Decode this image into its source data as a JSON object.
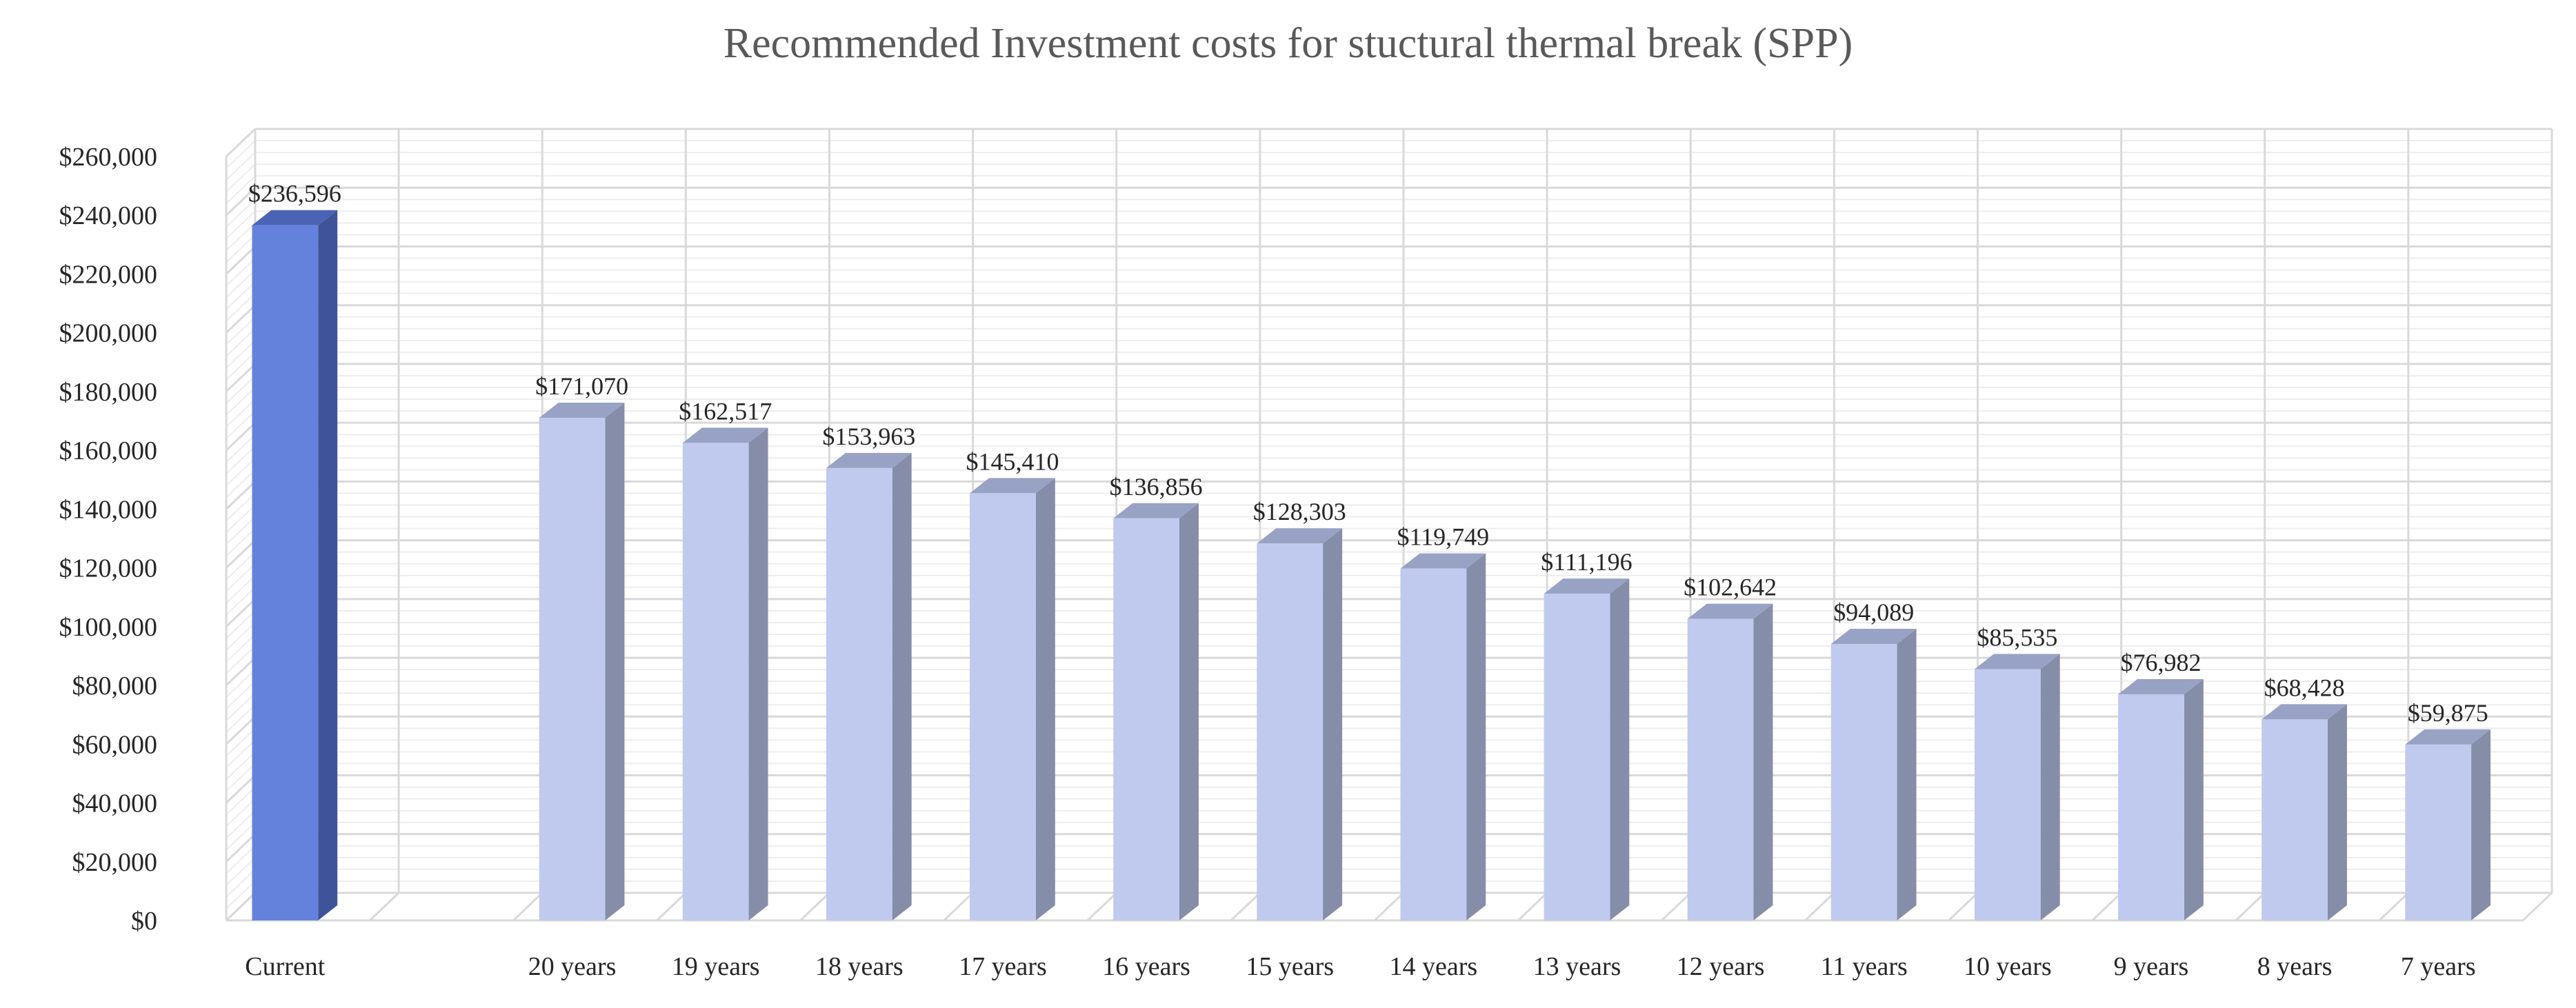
{
  "chart_data": {
    "type": "bar",
    "title": "Recommended Investment costs for stuctural thermal break (SPP)",
    "xlabel": "",
    "ylabel": "",
    "categories": [
      "Current",
      "",
      "20 years",
      "19 years",
      "18 years",
      "17 years",
      "16 years",
      "15 years",
      "14 years",
      "13 years",
      "12 years",
      "11 years",
      "10 years",
      "9 years",
      "8 years",
      "7 years"
    ],
    "values": [
      236596,
      null,
      171070,
      162517,
      153963,
      145410,
      136856,
      128303,
      119749,
      111196,
      102642,
      94089,
      85535,
      76982,
      68428,
      59875
    ],
    "data_labels": [
      "$236,596",
      "",
      "$171,070",
      "$162,517",
      "$153,963",
      "$145,410",
      "$136,856",
      "$128,303",
      "$119,749",
      "$111,196",
      "$102,642",
      "$94,089",
      "$85,535",
      "$76,982",
      "$68,428",
      "$59,875"
    ],
    "ylim": [
      0,
      260000
    ],
    "yticks": [
      0,
      20000,
      40000,
      60000,
      80000,
      100000,
      120000,
      140000,
      160000,
      180000,
      200000,
      220000,
      240000,
      260000
    ],
    "ytick_labels": [
      "$0",
      "$20,000",
      "$40,000",
      "$60,000",
      "$80,000",
      "$100,000",
      "$120,000",
      "$140,000",
      "$160,000",
      "$180,000",
      "$200,000",
      "$220,000",
      "$240,000",
      "$260,000"
    ],
    "grid": true,
    "style": "3d-column",
    "colors": {
      "current_front": "#6482DC",
      "current_side": "#3F5399",
      "current_top": "#4A63B5",
      "other_front": "#BFCAEE",
      "other_side": "#858DA8",
      "other_top": "#98A2C4",
      "grid": "#D9D9D9",
      "text": "#262626",
      "title": "#595959"
    }
  }
}
